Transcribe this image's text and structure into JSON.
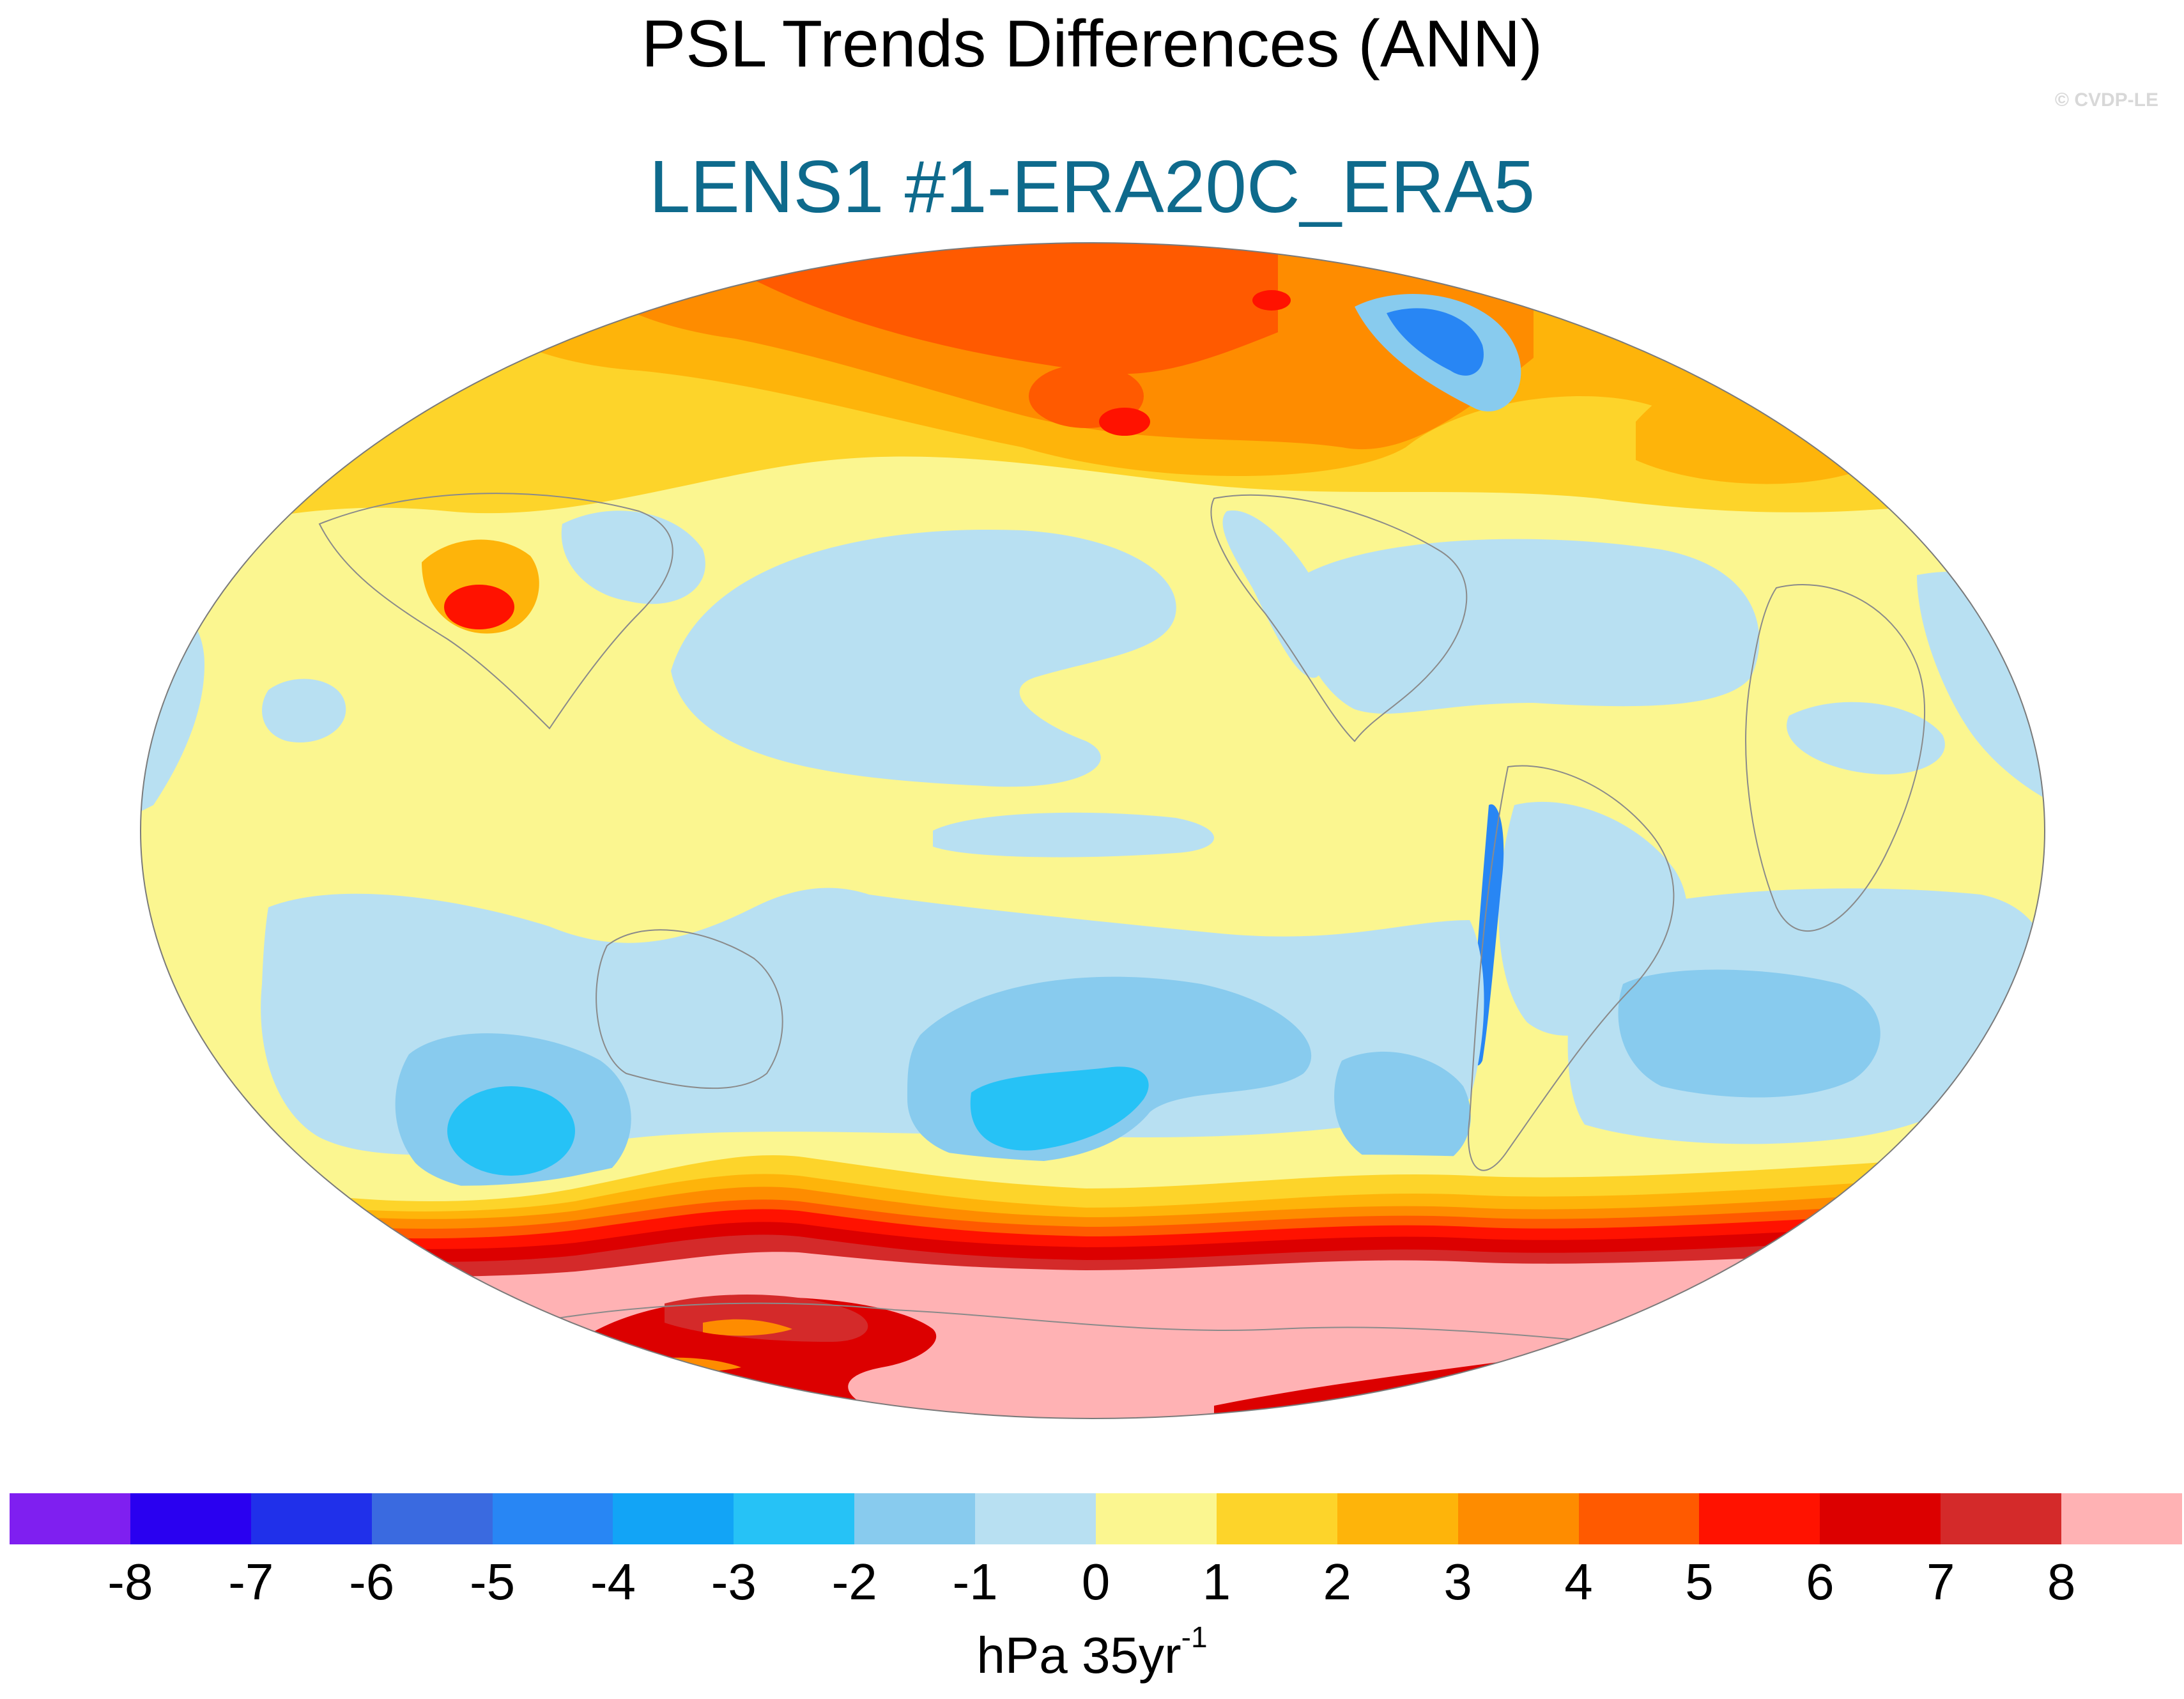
{
  "header": {
    "title": "PSL Trends Differences (ANN)",
    "subtitle": "LENS1 #1-ERA20C_ERA5",
    "credit": "© CVDP-LE"
  },
  "colorbar": {
    "colors": [
      "#7f1ff0",
      "#2a00f0",
      "#2030ea",
      "#3a6ae0",
      "#2886f4",
      "#12a4f6",
      "#26c2f6",
      "#88cbee",
      "#b8e0f2",
      "#fbf690",
      "#fdd42a",
      "#feb40a",
      "#fe8c00",
      "#ff5a00",
      "#ff1200",
      "#dc0000",
      "#d42a2a",
      "#ffb2b4"
    ],
    "levels": [
      "-8",
      "-7",
      "-6",
      "-5",
      "-4",
      "-3",
      "-2",
      "-1",
      "0",
      "1",
      "2",
      "3",
      "4",
      "5",
      "6",
      "7",
      "8"
    ],
    "units_base": "hPa 35yr",
    "units_exponent": "-1"
  },
  "map": {
    "projection": "Robinson-like elliptical, Pacific-centered",
    "variable": "sea level pressure trend difference",
    "regions": [
      {
        "name": "arctic-positive",
        "fill": "#fe8c00"
      },
      {
        "name": "greenland-negative",
        "fill": "#2886f4"
      },
      {
        "name": "north-pacific-negative",
        "fill": "#b8e0f2"
      },
      {
        "name": "north-atlantic-negative",
        "fill": "#b8e0f2"
      },
      {
        "name": "southern-ocean-negative",
        "fill": "#88cbee"
      },
      {
        "name": "southern-ring-positive",
        "fill": "#dc0000"
      },
      {
        "name": "antarctic-positive",
        "fill": "#ffb2b4"
      }
    ]
  }
}
